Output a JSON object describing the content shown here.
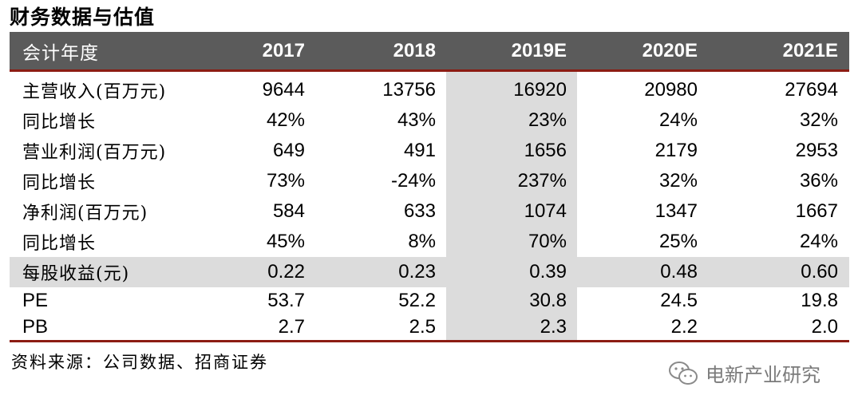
{
  "title": "财务数据与估值",
  "table": {
    "header": {
      "label": "会计年度",
      "years": [
        "2017",
        "2018",
        "2019E",
        "2020E",
        "2021E"
      ]
    },
    "rows": [
      {
        "label": "主营收入(百万元)",
        "values": [
          "9644",
          "13756",
          "16920",
          "20980",
          "27694"
        ]
      },
      {
        "label": "同比增长",
        "values": [
          "42%",
          "43%",
          "23%",
          "24%",
          "32%"
        ]
      },
      {
        "label": "营业利润(百万元)",
        "values": [
          "649",
          "491",
          "1656",
          "2179",
          "2953"
        ]
      },
      {
        "label": "同比增长",
        "values": [
          "73%",
          "-24%",
          "237%",
          "32%",
          "36%"
        ]
      },
      {
        "label": "净利润(百万元)",
        "values": [
          "584",
          "633",
          "1074",
          "1347",
          "1667"
        ]
      },
      {
        "label": "同比增长",
        "values": [
          "45%",
          "8%",
          "70%",
          "25%",
          "24%"
        ]
      },
      {
        "label": "每股收益(元)",
        "values": [
          "0.22",
          "0.23",
          "0.39",
          "0.48",
          "0.60"
        ]
      },
      {
        "label": "PE",
        "values": [
          "53.7",
          "52.2",
          "30.8",
          "24.5",
          "19.8"
        ]
      },
      {
        "label": "PB",
        "values": [
          "2.7",
          "2.5",
          "2.3",
          "2.2",
          "2.0"
        ]
      }
    ]
  },
  "source": "资料来源：公司数据、招商证券",
  "watermark": {
    "icon": "wechat-icon",
    "text": "电新产业研究"
  },
  "colors": {
    "header_bg": "#5b5b5b",
    "rule": "#8c1c13",
    "shade": "#dcdcdc"
  }
}
